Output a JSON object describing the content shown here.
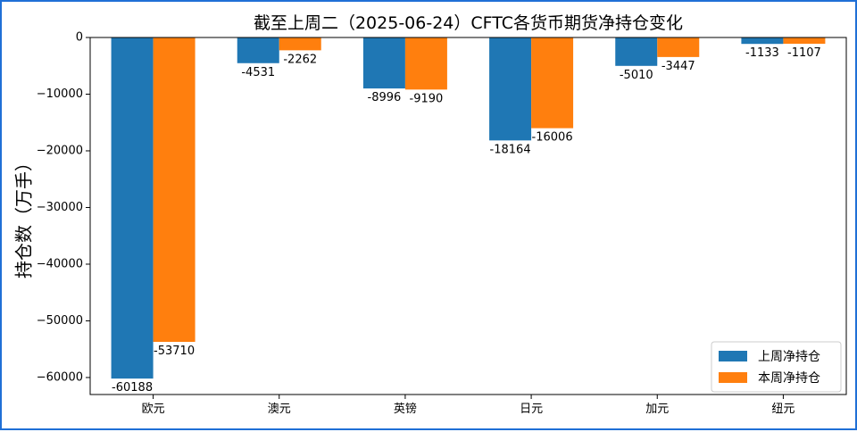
{
  "chart_data": {
    "type": "bar",
    "title": "截至上周二（2025-06-24）CFTC各货币期货净持仓变化",
    "xlabel": "",
    "ylabel": "持仓数（万手）",
    "categories": [
      "欧元",
      "澳元",
      "英镑",
      "日元",
      "加元",
      "纽元"
    ],
    "series": [
      {
        "name": "上周净持仓",
        "color": "#1f77b4",
        "values": [
          -60188,
          -4531,
          -8996,
          -18164,
          -5010,
          -1133
        ]
      },
      {
        "name": "本周净持仓",
        "color": "#ff7f0e",
        "values": [
          -53710,
          -2262,
          -9190,
          -16006,
          -3447,
          -1107
        ]
      }
    ],
    "ylim": [
      -63000,
      0
    ],
    "yticks": [
      0,
      -10000,
      -20000,
      -30000,
      -40000,
      -50000,
      -60000
    ],
    "grid": false,
    "legend_position": "lower-right",
    "data_labels": true
  }
}
